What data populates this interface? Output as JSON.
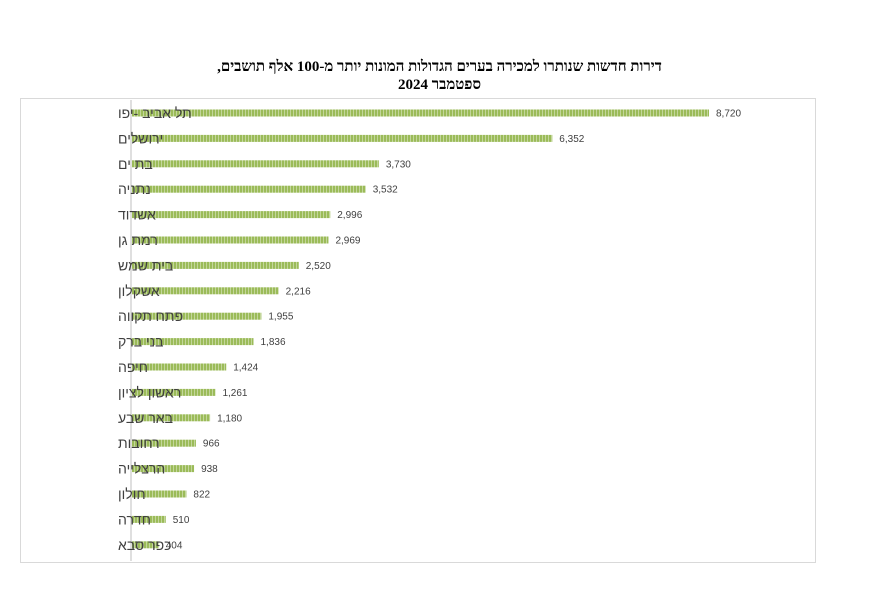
{
  "chart_data": {
    "type": "bar",
    "orientation": "horizontal",
    "title": "דירות חדשות שנותרו למכירה בערים הגדולות המונות יותר מ-100 אלף תושבים,",
    "subtitle": "ספטמבר 2024",
    "categories": [
      "תל אביב -יפו",
      "ירושלים",
      "בת ים",
      "נתניה",
      "אשדוד",
      "רמת גן",
      "בית שמש",
      "אשקלון",
      "פתח תקווה",
      "בני ברק",
      "חיפה",
      "ראשון לציון",
      "באר שבע",
      "רחובות",
      "הרצלייה",
      "חולון",
      "חדרה",
      "כפר סבא"
    ],
    "values": [
      8720,
      6352,
      3730,
      3532,
      2996,
      2969,
      2520,
      2216,
      1955,
      1836,
      1424,
      1261,
      1180,
      966,
      938,
      822,
      510,
      404
    ],
    "value_labels": [
      "8,720",
      "6,352",
      "3,730",
      "3,532",
      "2,996",
      "2,969",
      "2,520",
      "2,216",
      "1,955",
      "1,836",
      "1,424",
      "1,261",
      "1,180",
      "966",
      "938",
      "822",
      "510",
      "404"
    ],
    "bar_color": "#9bbb59",
    "xlim": [
      0,
      9000
    ],
    "grid": false,
    "legend": "none"
  }
}
